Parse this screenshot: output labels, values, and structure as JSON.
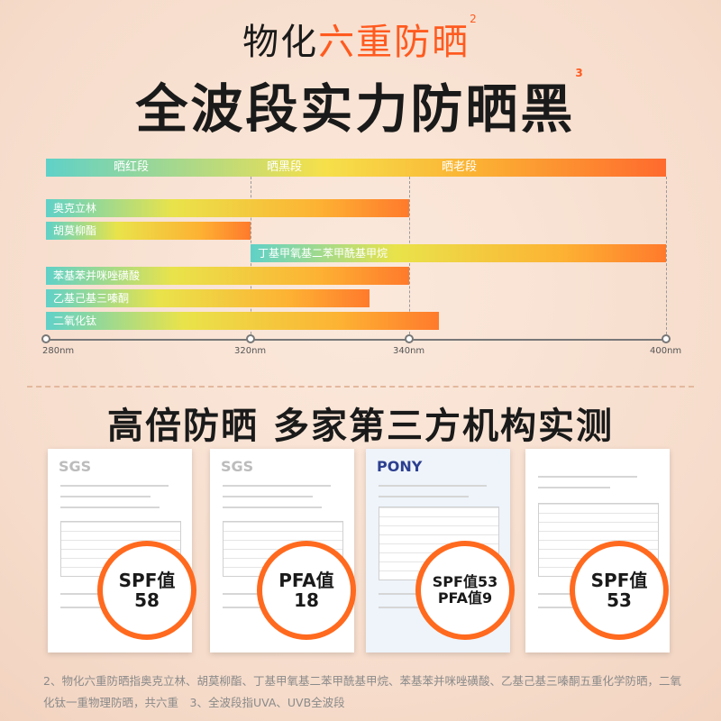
{
  "header": {
    "title_prefix": "物化",
    "title_highlight": "六重防晒",
    "title_note": "2",
    "main_title": "全波段实力防晒黑",
    "main_note": "3"
  },
  "chart_data": {
    "type": "bar",
    "bands": [
      {
        "label": "晒红段"
      },
      {
        "label": "晒黑段"
      },
      {
        "label": "晒老段"
      }
    ],
    "series": [
      {
        "name": "奥克立林",
        "start": 280,
        "end": 340
      },
      {
        "name": "胡莫柳酯",
        "start": 280,
        "end": 320
      },
      {
        "name": "丁基甲氧基二苯甲酰基甲烷",
        "start": 320,
        "end": 400
      },
      {
        "name": "苯基苯并咪唑磺酸",
        "start": 280,
        "end": 340
      },
      {
        "name": "乙基己基三嗪酮",
        "start": 280,
        "end": 335
      },
      {
        "name": "二氧化钛",
        "start": 280,
        "end": 347
      }
    ],
    "ticks": [
      "280nm",
      "320nm",
      "340nm",
      "400nm"
    ],
    "tick_values": [
      280,
      320,
      340,
      400
    ]
  },
  "section_title": "高倍防晒 多家第三方机构实测",
  "reports": [
    {
      "logo": "SGS",
      "badge_label": "SPF值",
      "badge_value": "58"
    },
    {
      "logo": "SGS",
      "badge_label": "PFA值",
      "badge_value": "18"
    },
    {
      "logo": "PONY",
      "badge_label": "SPF值53",
      "badge_value": "PFA值9"
    },
    {
      "logo": "",
      "badge_label": "SPF值",
      "badge_value": "53"
    }
  ],
  "footnote": "2、物化六重防晒指奥克立林、胡莫柳酯、丁基甲氧基二苯甲酰基甲烷、苯基苯并咪唑磺酸、乙基己基三嗪酮五重化学防晒，二氧化钛一重物理防晒，共六重　3、全波段指UVA、UVB全波段"
}
